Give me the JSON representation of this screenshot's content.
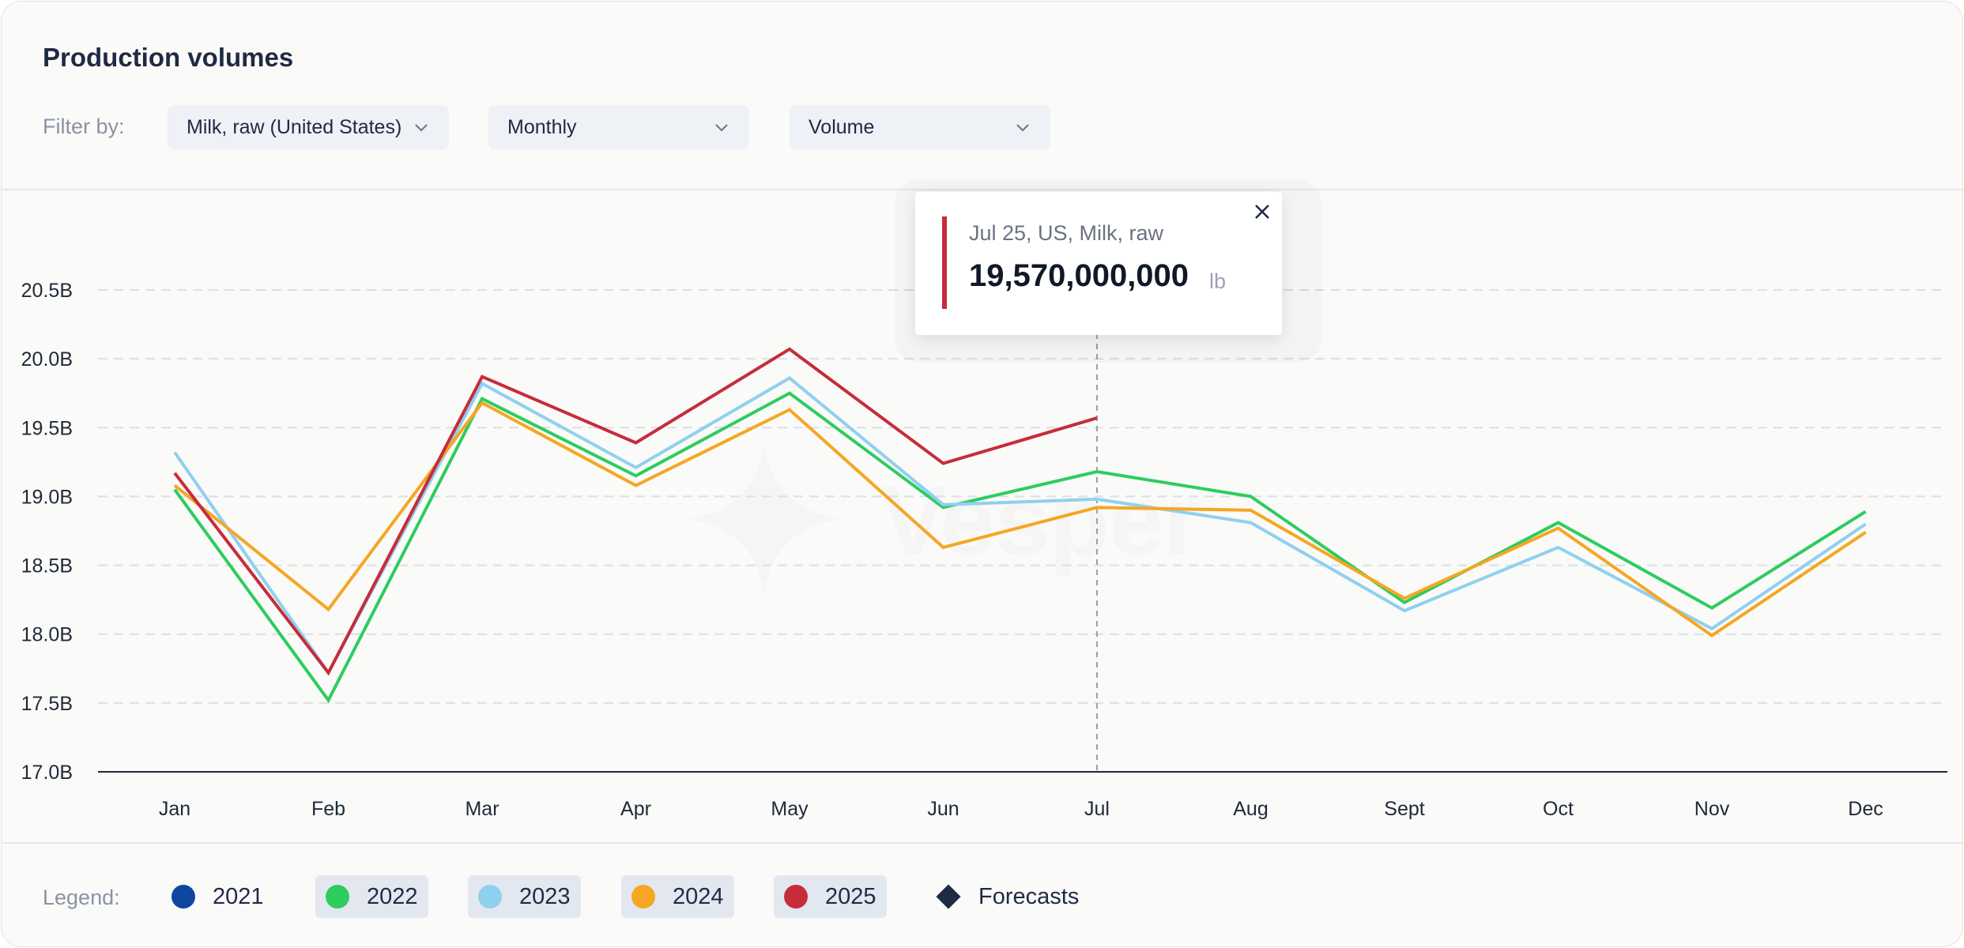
{
  "header": {
    "title": "Production volumes",
    "filter_label": "Filter by:",
    "filters": [
      {
        "value": "Milk, raw (United States)",
        "icon": "chevron-down-icon"
      },
      {
        "value": "Monthly",
        "icon": "chevron-down-icon"
      },
      {
        "value": "Volume",
        "icon": "chevron-down-icon"
      }
    ]
  },
  "tooltip": {
    "label": "Jul 25, US, Milk, raw",
    "value": "19,570,000,000",
    "unit": "lb",
    "accent": "#c62c3a",
    "close_icon": "close-icon"
  },
  "legend": {
    "label": "Legend:",
    "items": [
      {
        "label": "2021",
        "color": "#0d47a1",
        "active": false
      },
      {
        "label": "2022",
        "color": "#2ecc5f",
        "active": true
      },
      {
        "label": "2023",
        "color": "#8fd0ef",
        "active": true
      },
      {
        "label": "2024",
        "color": "#f5a623",
        "active": true
      },
      {
        "label": "2025",
        "color": "#c62c3a",
        "active": true
      }
    ],
    "forecast_label": "Forecasts",
    "forecast_icon": "diamond-icon"
  },
  "chart_data": {
    "type": "line",
    "categories": [
      "Jan",
      "Feb",
      "Mar",
      "Apr",
      "May",
      "Jun",
      "Jul",
      "Aug",
      "Sept",
      "Oct",
      "Nov",
      "Dec"
    ],
    "y_ticks": [
      "17.0B",
      "17.5B",
      "18.0B",
      "18.5B",
      "19.0B",
      "19.5B",
      "20.0B",
      "20.5B"
    ],
    "ylim": [
      17.0,
      20.5
    ],
    "y_unit": "B",
    "grid": true,
    "highlight_category": "Jul",
    "watermark": "Vesper",
    "series": [
      {
        "name": "2022",
        "color": "#2ecc5f",
        "values": [
          19.05,
          17.52,
          19.71,
          19.15,
          19.75,
          18.92,
          19.18,
          19.0,
          18.23,
          18.81,
          18.19,
          18.89
        ]
      },
      {
        "name": "2023",
        "color": "#8fd0ef",
        "values": [
          19.32,
          17.72,
          19.82,
          19.21,
          19.86,
          18.94,
          18.98,
          18.81,
          18.17,
          18.63,
          18.04,
          18.8
        ]
      },
      {
        "name": "2024",
        "color": "#f5a623",
        "values": [
          19.08,
          18.18,
          19.68,
          19.08,
          19.63,
          18.63,
          18.92,
          18.9,
          18.26,
          18.77,
          17.99,
          18.74
        ]
      },
      {
        "name": "2025",
        "color": "#c62c3a",
        "values": [
          19.17,
          17.72,
          19.87,
          19.39,
          20.07,
          19.24,
          19.57,
          null,
          null,
          null,
          null,
          null
        ]
      }
    ]
  }
}
